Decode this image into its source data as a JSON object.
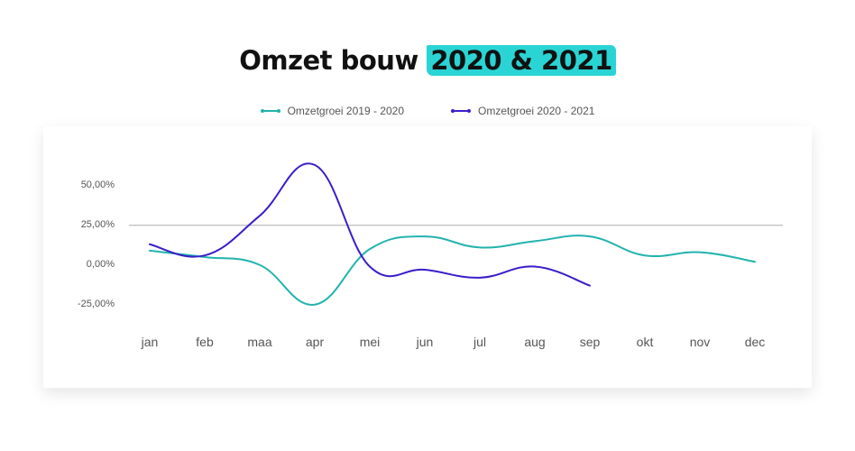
{
  "title": {
    "prefix": "Omzet bouw",
    "highlight": "2020 & 2021"
  },
  "colors": {
    "series1": "#22b3ad",
    "series2": "#3a1ec9",
    "highlight": "#2ad4d4",
    "reference_line": "#bdbdbd"
  },
  "chart_data": {
    "type": "line",
    "smooth": true,
    "categories": [
      "jan",
      "feb",
      "maa",
      "apr",
      "mei",
      "jun",
      "jul",
      "aug",
      "sep",
      "okt",
      "nov",
      "dec"
    ],
    "series": [
      {
        "name": "Omzetgroei 2019 - 2020",
        "values": [
          8,
          4,
          -1,
          -26,
          9,
          17,
          10,
          14,
          17,
          5,
          7,
          1
        ]
      },
      {
        "name": "Omzetgroei 2020 - 2021",
        "values": [
          12,
          5,
          30,
          62,
          -2,
          -4,
          -9,
          -2,
          -14,
          null,
          null,
          null
        ]
      }
    ],
    "yticks": [
      50,
      25,
      0,
      -25
    ],
    "ytick_labels": [
      "50,00%",
      "25,00%",
      "0,00%",
      "-25,00%"
    ],
    "reference_line": 24,
    "legend_position": "top",
    "grid": false
  }
}
